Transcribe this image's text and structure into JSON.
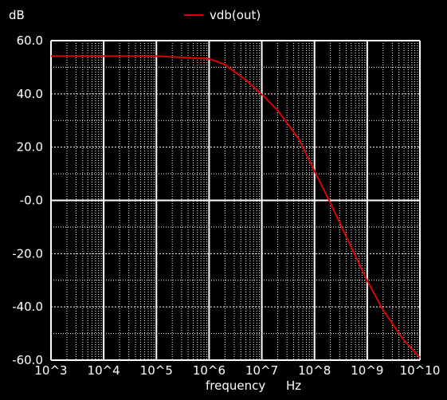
{
  "chart_data": {
    "type": "line",
    "title": "",
    "xlabel": "frequency",
    "xunit": "Hz",
    "ylabel": "dB",
    "xscale": "log",
    "xlim": [
      1000,
      10000000000
    ],
    "ylim": [
      -60,
      60
    ],
    "x_tick_labels": [
      "10^3",
      "10^4",
      "10^5",
      "10^6",
      "10^7",
      "10^8",
      "10^9",
      "10^10"
    ],
    "y_tick_labels": [
      "60.0",
      "40.0",
      "20.0",
      "-0.0",
      "-20.0",
      "-40.0",
      "-60.0"
    ],
    "y_ticks": [
      60,
      40,
      20,
      0,
      -20,
      -40,
      -60
    ],
    "grid": true,
    "legend_position": "top-center",
    "series": [
      {
        "name": "vdb(out)",
        "color": "#e00000",
        "x": [
          1000,
          10000,
          100000,
          1000000,
          2000000,
          5000000,
          10000000,
          20000000,
          50000000,
          100000000,
          200000000,
          500000000,
          1000000000,
          2000000000,
          5000000000,
          10000000000
        ],
        "y": [
          54.2,
          54.2,
          54.2,
          53.2,
          51.0,
          45.2,
          39.8,
          33.8,
          23.2,
          11.0,
          -1.0,
          -17.6,
          -30.2,
          -41.2,
          -52.6,
          -59.0
        ]
      }
    ]
  }
}
